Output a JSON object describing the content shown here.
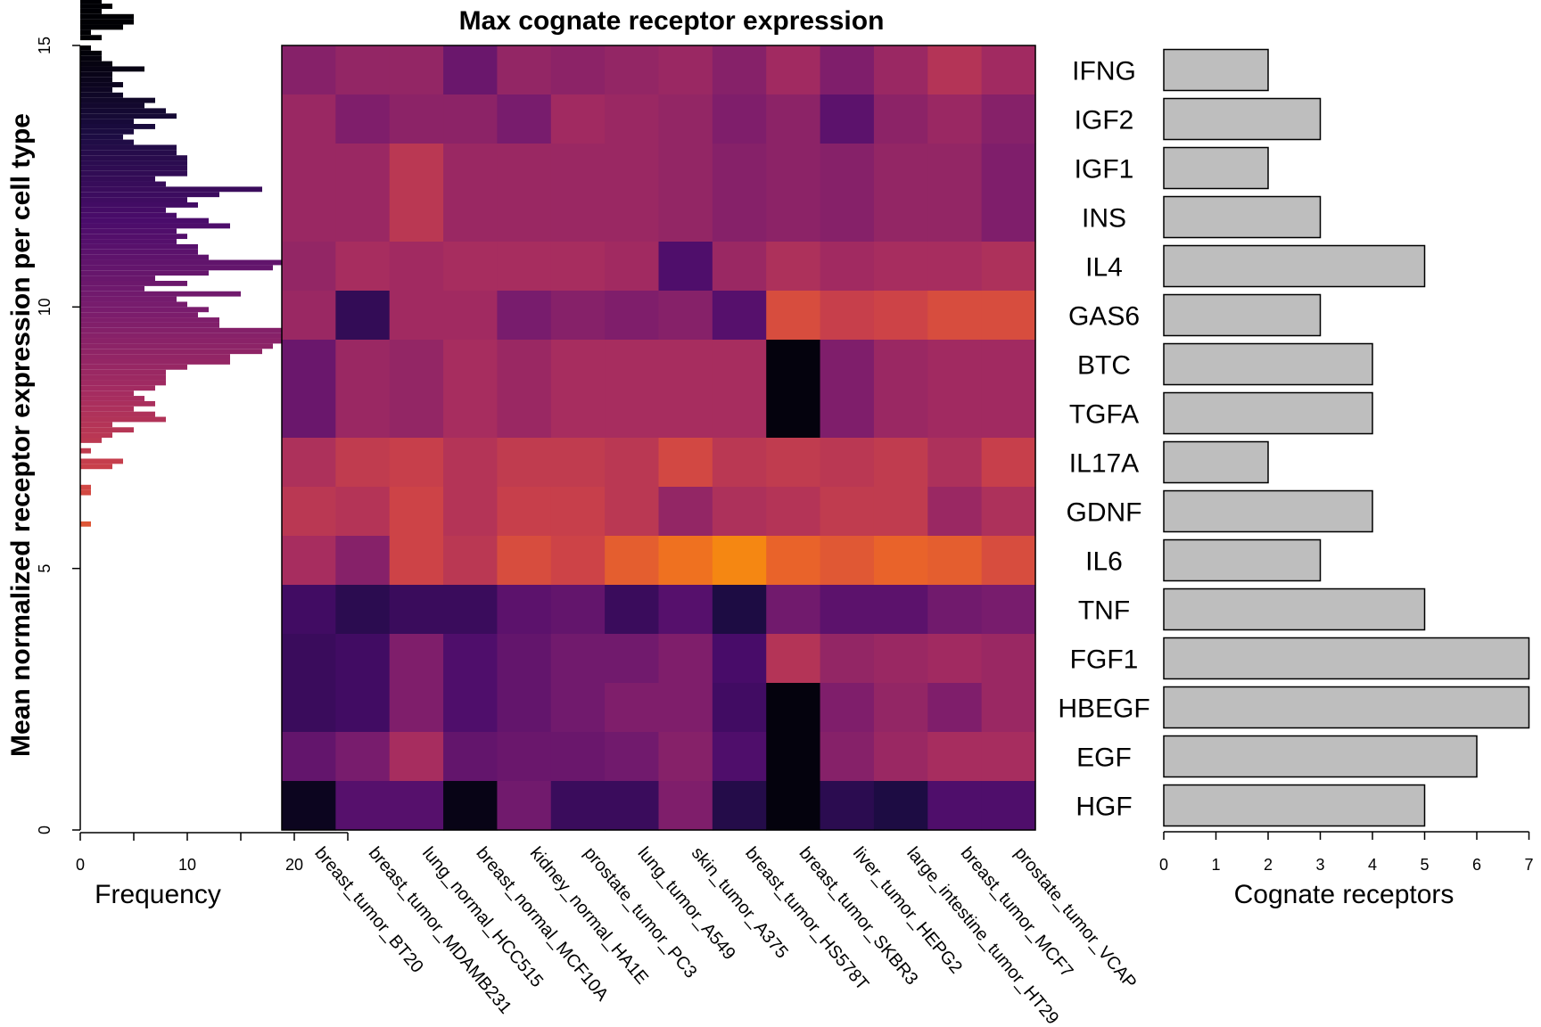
{
  "chart_data": [
    {
      "type": "bar",
      "orientation": "horizontal",
      "xlabel": "Frequency",
      "ylabel": "Mean normalized receptor expression per cell type",
      "xlim": [
        0,
        25
      ],
      "ylim": [
        0,
        15
      ],
      "xticks": [
        "0",
        "10",
        "20"
      ],
      "yticks": [
        "0",
        "5",
        "10",
        "15"
      ],
      "bin_width": 0.1,
      "colormap": [
        "#000004",
        "#1b0c41",
        "#4a0c6b",
        "#781c6d",
        "#a52c60",
        "#cf4446",
        "#ed6925",
        "#fb9b06",
        "#f7d13d",
        "#fcffa4"
      ],
      "counts": [
        0,
        0,
        0,
        0,
        0,
        0,
        0,
        0,
        0,
        0,
        0,
        0,
        0,
        0,
        0,
        0,
        0,
        0,
        0,
        0,
        0,
        0,
        0,
        0,
        0,
        0,
        0,
        0,
        0,
        0,
        0,
        0,
        0,
        0,
        0,
        0,
        0,
        0,
        0,
        0,
        0,
        0,
        0,
        0,
        0,
        0,
        0,
        0,
        0,
        0,
        0,
        0,
        0,
        0,
        0,
        0,
        0,
        0,
        1,
        0,
        0,
        0,
        0,
        0,
        1,
        1,
        0,
        0,
        0,
        3,
        4,
        0,
        1,
        0,
        2,
        3,
        5,
        3,
        8,
        7,
        5,
        7,
        6,
        5,
        7,
        8,
        8,
        8,
        10,
        14,
        14,
        17,
        18,
        20,
        25,
        29,
        13,
        13,
        11,
        12,
        10,
        9,
        15,
        6,
        10,
        7,
        12,
        18,
        22,
        12,
        11,
        11,
        9,
        10,
        9,
        14,
        12,
        9,
        8,
        11,
        10,
        13,
        17,
        8,
        7,
        10,
        10,
        10,
        10,
        9,
        9,
        5,
        4,
        5,
        7,
        5,
        9,
        8,
        6,
        7,
        4,
        3,
        4,
        3,
        3,
        6,
        3,
        2,
        2,
        1,
        0,
        2,
        1,
        4,
        5,
        5,
        2,
        3,
        2,
        2,
        1,
        1,
        1,
        1,
        0,
        3,
        3,
        0
      ]
    },
    {
      "type": "heatmap",
      "title": "Max cognate receptor expression",
      "rows": [
        "IFNG",
        "IGF2",
        "IGF1",
        "INS",
        "IL4",
        "GAS6",
        "BTC",
        "TGFA",
        "IL17A",
        "GDNF",
        "IL6",
        "TNF",
        "FGF1",
        "HBEGF",
        "EGF",
        "HGF"
      ],
      "columns": [
        "breast_tumor_BT20",
        "breast_tumor_MDAMB231",
        "lung_normal_HCC515",
        "breast_normal_MCF10A",
        "kidney_normal_HA1E",
        "prostate_tumor_PC3",
        "lung_tumor_A549",
        "skin_tumor_A375",
        "breast_tumor_HS578T",
        "breast_tumor_SKBR3",
        "liver_tumor_HEPG2",
        "large_intestine_tumor_HT29",
        "breast_tumor_MCF7",
        "prostate_tumor_VCAP"
      ],
      "color_scale": "inferno",
      "values": [
        [
          11.0,
          12.0,
          12.0,
          9.0,
          12.0,
          11.5,
          12.0,
          12.5,
          11.0,
          13.0,
          10.5,
          12.5,
          14.5,
          13.0
        ],
        [
          12.5,
          10.5,
          11.5,
          11.5,
          10.0,
          13.0,
          12.5,
          12.0,
          10.5,
          11.5,
          8.0,
          11.5,
          12.5,
          11.0
        ],
        [
          12.5,
          12.5,
          15.0,
          12.5,
          12.5,
          12.5,
          12.5,
          12.0,
          11.0,
          11.5,
          11.0,
          12.0,
          12.0,
          10.5
        ],
        [
          12.5,
          12.5,
          15.0,
          12.5,
          12.5,
          12.5,
          12.5,
          12.0,
          11.0,
          11.5,
          11.0,
          12.0,
          12.0,
          10.5
        ],
        [
          12.0,
          13.5,
          13.0,
          13.5,
          13.5,
          13.5,
          13.0,
          7.0,
          12.5,
          14.0,
          13.0,
          13.5,
          13.5,
          14.0
        ],
        [
          12.5,
          5.0,
          13.0,
          13.0,
          10.0,
          11.0,
          10.5,
          11.0,
          7.5,
          17.5,
          16.0,
          16.5,
          17.5,
          17.5
        ],
        [
          9.0,
          12.5,
          12.0,
          13.5,
          12.5,
          13.5,
          13.5,
          13.5,
          13.5,
          0.5,
          10.5,
          12.5,
          13.0,
          13.0
        ],
        [
          9.0,
          12.5,
          12.0,
          13.5,
          12.5,
          13.5,
          13.5,
          13.5,
          13.5,
          0.5,
          10.5,
          12.5,
          13.0,
          13.0
        ],
        [
          14.0,
          15.5,
          16.0,
          14.5,
          15.5,
          15.5,
          15.0,
          17.0,
          15.0,
          15.5,
          15.0,
          15.5,
          14.0,
          16.0
        ],
        [
          15.0,
          14.5,
          16.5,
          14.5,
          16.0,
          16.0,
          15.0,
          12.0,
          14.0,
          14.5,
          15.5,
          15.5,
          12.5,
          14.0
        ],
        [
          13.5,
          11.0,
          16.5,
          15.0,
          17.5,
          16.5,
          19.0,
          20.5,
          22.0,
          19.5,
          18.5,
          19.5,
          19.0,
          17.5
        ],
        [
          6.0,
          4.5,
          5.5,
          5.5,
          8.0,
          8.5,
          5.5,
          7.5,
          3.5,
          9.5,
          8.0,
          8.0,
          9.5,
          10.0
        ],
        [
          5.5,
          6.0,
          10.5,
          7.0,
          8.5,
          9.5,
          9.5,
          10.5,
          6.5,
          14.5,
          12.0,
          12.5,
          13.0,
          12.5
        ],
        [
          5.5,
          6.0,
          10.5,
          7.0,
          8.5,
          9.5,
          10.5,
          10.5,
          6.0,
          0.5,
          10.5,
          12.0,
          10.5,
          12.5
        ],
        [
          8.5,
          10.0,
          13.5,
          8.5,
          9.0,
          9.0,
          9.5,
          11.0,
          7.0,
          0.5,
          11.0,
          12.5,
          13.5,
          13.5
        ],
        [
          1.5,
          7.5,
          7.5,
          1.0,
          9.5,
          5.5,
          5.5,
          10.5,
          4.0,
          0.5,
          4.5,
          3.5,
          7.0,
          7.0
        ]
      ]
    },
    {
      "type": "bar",
      "orientation": "horizontal",
      "categories": [
        "IFNG",
        "IGF2",
        "IGF1",
        "INS",
        "IL4",
        "GAS6",
        "BTC",
        "TGFA",
        "IL17A",
        "GDNF",
        "IL6",
        "TNF",
        "FGF1",
        "HBEGF",
        "EGF",
        "HGF"
      ],
      "values": [
        2,
        3,
        2,
        3,
        5,
        3,
        4,
        4,
        2,
        4,
        3,
        5,
        7,
        7,
        6,
        5
      ],
      "xlabel": "Cognate receptors",
      "xlim": [
        0,
        7
      ],
      "xticks": [
        "0",
        "1",
        "2",
        "3",
        "4",
        "5",
        "6",
        "7"
      ],
      "bar_color": "#bebebe",
      "bar_edge_color": "#000000"
    }
  ]
}
